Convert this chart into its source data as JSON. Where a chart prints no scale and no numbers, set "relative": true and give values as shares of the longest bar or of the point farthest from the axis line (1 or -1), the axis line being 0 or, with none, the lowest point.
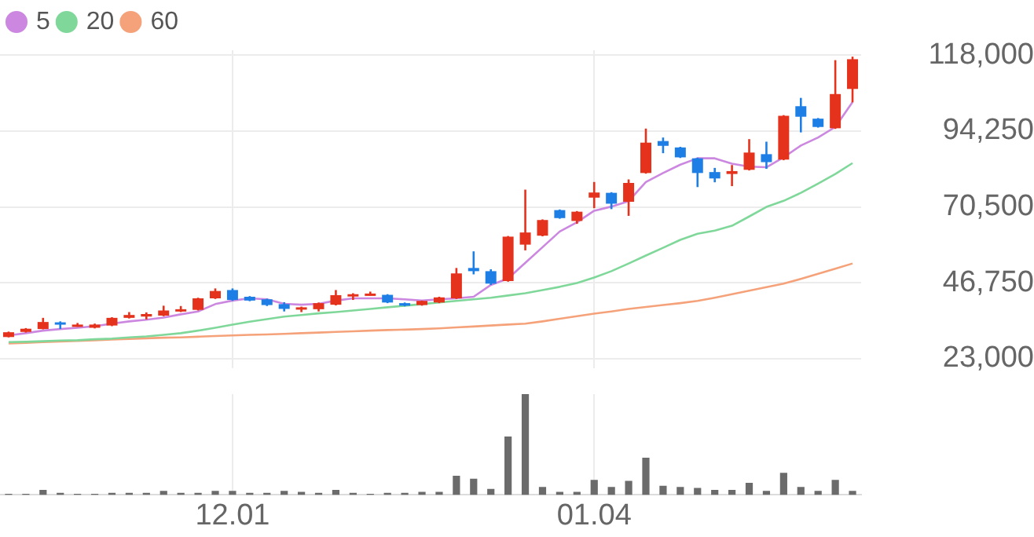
{
  "chart_data": [
    {
      "type": "candlestick",
      "categories": [
        null,
        null,
        null,
        null,
        null,
        null,
        null,
        null,
        null,
        null,
        null,
        null,
        null,
        "12.01",
        null,
        null,
        null,
        null,
        null,
        null,
        null,
        null,
        null,
        null,
        null,
        null,
        null,
        null,
        null,
        null,
        null,
        null,
        null,
        null,
        "01.04",
        null,
        null,
        null,
        null,
        null,
        null,
        null,
        null,
        null,
        null,
        null,
        null,
        null,
        null,
        null
      ],
      "ohlc": [
        [
          29800,
          31500,
          29700,
          31300
        ],
        [
          31400,
          32600,
          31200,
          32400
        ],
        [
          32300,
          35800,
          32200,
          34500
        ],
        [
          34400,
          34700,
          32300,
          33900
        ],
        [
          33200,
          34200,
          33000,
          33700
        ],
        [
          32700,
          34000,
          32500,
          33700
        ],
        [
          33400,
          36000,
          33200,
          35800
        ],
        [
          35800,
          37600,
          35600,
          36700
        ],
        [
          36200,
          37500,
          35300,
          37000
        ],
        [
          36500,
          39600,
          36300,
          38100
        ],
        [
          37800,
          39500,
          37600,
          38500
        ],
        [
          38300,
          42100,
          38100,
          41900
        ],
        [
          41900,
          45000,
          41700,
          44200
        ],
        [
          44500,
          45000,
          41100,
          41400
        ],
        [
          42400,
          42600,
          41000,
          41200
        ],
        [
          41600,
          41800,
          39500,
          39800
        ],
        [
          40100,
          40700,
          37800,
          38600
        ],
        [
          38600,
          39300,
          37600,
          39100
        ],
        [
          38500,
          40600,
          37800,
          40400
        ],
        [
          39900,
          44500,
          39700,
          42900
        ],
        [
          42500,
          43500,
          41400,
          43200
        ],
        [
          43000,
          44000,
          42800,
          43400
        ],
        [
          43000,
          43200,
          40400,
          40600
        ],
        [
          40400,
          40600,
          39400,
          39600
        ],
        [
          39800,
          41200,
          39600,
          41100
        ],
        [
          40600,
          42400,
          40400,
          42200
        ],
        [
          41900,
          51400,
          41700,
          49700
        ],
        [
          51400,
          56600,
          49400,
          50400
        ],
        [
          50400,
          51000,
          46100,
          46500
        ],
        [
          47300,
          61400,
          47100,
          61200
        ],
        [
          58700,
          75900,
          56900,
          62500
        ],
        [
          61500,
          66600,
          61300,
          66400
        ],
        [
          69500,
          69700,
          66800,
          67000
        ],
        [
          66100,
          69200,
          65200,
          69000
        ],
        [
          73400,
          78300,
          70100,
          75000
        ],
        [
          74900,
          75100,
          69800,
          71500
        ],
        [
          72100,
          79100,
          67700,
          78000
        ],
        [
          81100,
          95000,
          80900,
          90600
        ],
        [
          91100,
          92200,
          87300,
          89600
        ],
        [
          89100,
          89300,
          85800,
          86000
        ],
        [
          85700,
          85900,
          76700,
          81100
        ],
        [
          81400,
          82700,
          78200,
          79400
        ],
        [
          80800,
          83600,
          77000,
          81700
        ],
        [
          82100,
          91700,
          81900,
          87500
        ],
        [
          87000,
          90900,
          82400,
          84500
        ],
        [
          85300,
          99200,
          85100,
          99000
        ],
        [
          102000,
          104600,
          93800,
          98700
        ],
        [
          98100,
          98300,
          95300,
          95500
        ],
        [
          95100,
          116400,
          94900,
          105800
        ],
        [
          107400,
          117500,
          103200,
          116700
        ]
      ],
      "colors": [
        "#e5321c",
        "#e5321c",
        "#e5321c",
        "#1d7fe6",
        "#e5321c",
        "#e5321c",
        "#e5321c",
        "#e5321c",
        "#e5321c",
        "#e5321c",
        "#e5321c",
        "#e5321c",
        "#e5321c",
        "#1d7fe6",
        "#1d7fe6",
        "#1d7fe6",
        "#1d7fe6",
        "#e5321c",
        "#e5321c",
        "#e5321c",
        "#e5321c",
        "#e5321c",
        "#1d7fe6",
        "#1d7fe6",
        "#e5321c",
        "#e5321c",
        "#e5321c",
        "#1d7fe6",
        "#1d7fe6",
        "#e5321c",
        "#e5321c",
        "#e5321c",
        "#1d7fe6",
        "#e5321c",
        "#e5321c",
        "#1d7fe6",
        "#e5321c",
        "#e5321c",
        "#1d7fe6",
        "#1d7fe6",
        "#1d7fe6",
        "#1d7fe6",
        "#e5321c",
        "#e5321c",
        "#1d7fe6",
        "#e5321c",
        "#1d7fe6",
        "#1d7fe6",
        "#e5321c",
        "#e5321c"
      ],
      "series": [
        {
          "type": "line",
          "name": "5",
          "color": "#cc88e0",
          "values": [
            30300,
            31000,
            31800,
            32300,
            32700,
            33200,
            34000,
            34700,
            35200,
            35900,
            36900,
            37800,
            40100,
            41200,
            41900,
            41600,
            40200,
            39900,
            40200,
            41200,
            41900,
            41900,
            41900,
            41600,
            41200,
            41600,
            41900,
            42400,
            46100,
            48100,
            53000,
            57900,
            62800,
            65700,
            69300,
            70600,
            72300,
            78300,
            81100,
            83700,
            85700,
            85700,
            84000,
            83100,
            82900,
            86000,
            89700,
            92200,
            95500,
            103300
          ]
        },
        {
          "type": "line",
          "name": "20",
          "color": "#7fd89a",
          "values": [
            28200,
            28300,
            28500,
            28700,
            28800,
            29100,
            29300,
            29700,
            30000,
            30500,
            31000,
            31800,
            32700,
            33700,
            34600,
            35400,
            36200,
            36700,
            37200,
            37600,
            38100,
            38600,
            39100,
            39600,
            40100,
            40600,
            41100,
            41600,
            42100,
            42800,
            43500,
            44500,
            45500,
            46700,
            48400,
            50400,
            52800,
            55300,
            57700,
            60200,
            62100,
            63100,
            64600,
            67500,
            70500,
            72400,
            74900,
            77800,
            80800,
            84200
          ]
        },
        {
          "type": "line",
          "name": "60",
          "color": "#f5a27a",
          "values": [
            27800,
            28000,
            28200,
            28400,
            28600,
            28800,
            29000,
            29200,
            29400,
            29600,
            29700,
            29900,
            30100,
            30300,
            30500,
            30600,
            30800,
            31000,
            31200,
            31400,
            31600,
            31800,
            32000,
            32100,
            32300,
            32500,
            32800,
            33100,
            33400,
            33700,
            34000,
            34700,
            35500,
            36300,
            37100,
            37800,
            38600,
            39200,
            39800,
            40400,
            41100,
            42100,
            43200,
            44300,
            45400,
            46500,
            48000,
            49600,
            51200,
            52800
          ]
        }
      ],
      "ylim": [
        20000,
        119500
      ],
      "yticks": [
        {
          "value": 23000,
          "label": "23,000"
        },
        {
          "value": 46750,
          "label": "46,750"
        },
        {
          "value": 70500,
          "label": "70,500"
        },
        {
          "value": 94250,
          "label": "94,250"
        },
        {
          "value": 118000,
          "label": "118,000"
        }
      ],
      "grid": true,
      "legend": "top left",
      "tick_labels": "y"
    },
    {
      "type": "bar",
      "relative": true,
      "categories": [
        null,
        null,
        null,
        null,
        null,
        null,
        null,
        null,
        null,
        null,
        null,
        null,
        null,
        "12.01",
        null,
        null,
        null,
        null,
        null,
        null,
        null,
        null,
        null,
        null,
        null,
        null,
        null,
        null,
        null,
        null,
        null,
        null,
        null,
        null,
        "01.04",
        null,
        null,
        null,
        null,
        null,
        null,
        null,
        null,
        null,
        null,
        null,
        null,
        null,
        null,
        null
      ],
      "values": [
        0.01,
        0.01,
        0.05,
        0.02,
        0.01,
        0.01,
        0.02,
        0.02,
        0.02,
        0.04,
        0.02,
        0.02,
        0.04,
        0.04,
        0.02,
        0.02,
        0.04,
        0.03,
        0.02,
        0.05,
        0.02,
        0.01,
        0.02,
        0.02,
        0.03,
        0.03,
        0.19,
        0.16,
        0.06,
        0.58,
        1,
        0.08,
        0.03,
        0.03,
        0.15,
        0.08,
        0.14,
        0.37,
        0.09,
        0.08,
        0.07,
        0.05,
        0.05,
        0.12,
        0.04,
        0.22,
        0.08,
        0.04,
        0.15,
        0.04
      ],
      "color": "#6b6b6b",
      "grid": "x",
      "tick_labels": "x"
    }
  ]
}
